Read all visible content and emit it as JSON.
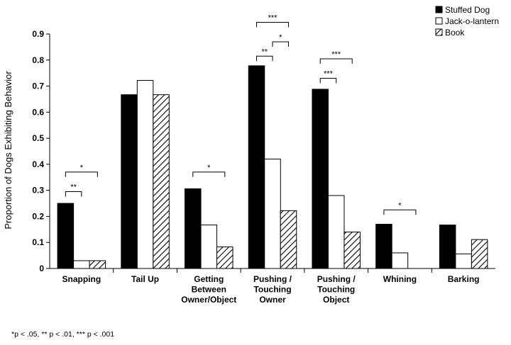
{
  "chart_data": {
    "type": "bar",
    "ylabel": "Proportion of Dogs Exhibiting Behavior",
    "ylim": [
      0,
      0.9
    ],
    "yticks": [
      "0",
      "0.1",
      "0.2",
      "0.3",
      "0.4",
      "0.5",
      "0.6",
      "0.7",
      "0.8",
      "0.9"
    ],
    "categories": [
      [
        "Snapping"
      ],
      [
        "Tail Up"
      ],
      [
        "Getting",
        "Between",
        "Owner/Object"
      ],
      [
        "Pushing /",
        "Touching",
        "Owner"
      ],
      [
        "Pushing /",
        "Touching",
        "Object"
      ],
      [
        "Whining"
      ],
      [
        "Barking"
      ]
    ],
    "series": [
      {
        "name": "Stuffed Dog",
        "fill": "solid",
        "color": "#000000",
        "values": [
          0.25,
          0.667,
          0.306,
          0.778,
          0.688,
          0.17,
          0.167
        ]
      },
      {
        "name": "Jack-o-lantern",
        "fill": "hollow",
        "color": "#ffffff",
        "values": [
          0.03,
          0.722,
          0.167,
          0.42,
          0.28,
          0.06,
          0.056
        ]
      },
      {
        "name": "Book",
        "fill": "hatched",
        "color": "#ffffff",
        "values": [
          0.03,
          0.667,
          0.083,
          0.222,
          0.14,
          0.0,
          0.111
        ]
      }
    ],
    "significance": [
      {
        "category": 0,
        "from": 0,
        "to": 1,
        "label": "**",
        "y": 0.295
      },
      {
        "category": 0,
        "from": 0,
        "to": 2,
        "label": "*",
        "y": 0.37
      },
      {
        "category": 2,
        "from": 0,
        "to": 2,
        "label": "*",
        "y": 0.37
      },
      {
        "category": 3,
        "from": 0,
        "to": 1,
        "label": "**",
        "y": 0.815
      },
      {
        "category": 3,
        "from": 1,
        "to": 2,
        "label": "*",
        "y": 0.87
      },
      {
        "category": 3,
        "from": 0,
        "to": 2,
        "label": "***",
        "y": 0.945
      },
      {
        "category": 4,
        "from": 0,
        "to": 1,
        "label": "***",
        "y": 0.73
      },
      {
        "category": 4,
        "from": 0,
        "to": 2,
        "label": "***",
        "y": 0.805
      },
      {
        "category": 5,
        "from": 0,
        "to": 2,
        "label": "*",
        "y": 0.225
      }
    ],
    "legend_position": "top-right",
    "grid": false
  },
  "footnote": "*p < .05,   ** p < .01,   *** p < .001"
}
